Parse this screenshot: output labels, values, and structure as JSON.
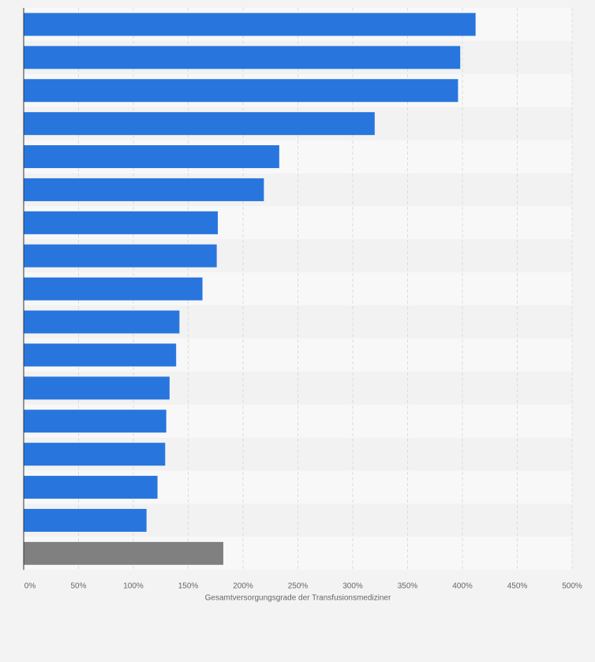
{
  "chart_data": {
    "type": "bar",
    "orientation": "horizontal",
    "title": "",
    "xlabel": "Gesamtversorgungsgrade der Transfusionsmediziner",
    "ylabel": "",
    "xlim": [
      0,
      500
    ],
    "x_ticks": [
      "0%",
      "50%",
      "100%",
      "150%",
      "200%",
      "250%",
      "300%",
      "350%",
      "400%",
      "450%",
      "500%"
    ],
    "grid": true,
    "legend": "none",
    "categories": [
      "",
      "",
      "",
      "",
      "",
      "",
      "",
      "",
      "",
      "",
      "",
      "",
      "",
      "",
      "",
      "",
      ""
    ],
    "values": [
      412,
      398,
      396,
      320,
      233,
      219,
      177,
      176,
      163,
      142,
      139,
      133,
      130,
      129,
      122,
      112,
      182
    ],
    "bar_colors": [
      "#2876dd",
      "#2876dd",
      "#2876dd",
      "#2876dd",
      "#2876dd",
      "#2876dd",
      "#2876dd",
      "#2876dd",
      "#2876dd",
      "#2876dd",
      "#2876dd",
      "#2876dd",
      "#2876dd",
      "#2876dd",
      "#2876dd",
      "#2876dd",
      "#808080"
    ]
  },
  "colors": {
    "background": "#f3f3f4",
    "band_light": "#f8f8f9",
    "band_dark": "#f2f2f3",
    "grid": "#dcdcdc",
    "axis": "#333333",
    "bar": "#2876dd",
    "bar_total": "#808080"
  }
}
